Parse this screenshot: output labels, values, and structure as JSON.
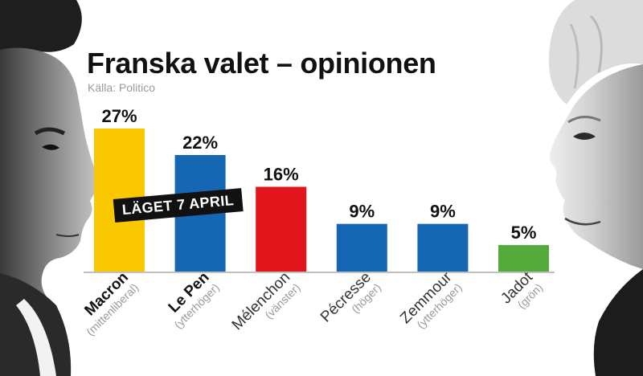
{
  "header": {
    "title": "Franska valet – opinionen",
    "source": "Källa: Politico"
  },
  "tag": {
    "text": "LÄGET 7 APRIL"
  },
  "chart_data": {
    "type": "bar",
    "title": "Franska valet – opinionen",
    "subtitle": "Källa: Politico",
    "categories": [
      "Macron",
      "Le Pen",
      "Mélenchon",
      "Pécresse",
      "Zemmour",
      "Jadot"
    ],
    "category_notes": [
      "(mittenliberal)",
      "(ytterhöger)",
      "(vänster)",
      "(höger)",
      "(ytterhöger)",
      "(grön)"
    ],
    "values": [
      27,
      22,
      16,
      9,
      9,
      5
    ],
    "value_labels": [
      "27%",
      "22%",
      "16%",
      "9%",
      "9%",
      "5%"
    ],
    "colors": [
      "#f9c800",
      "#1667b3",
      "#e3151c",
      "#1667b3",
      "#1667b3",
      "#55aa3c"
    ],
    "bold_names": [
      true,
      true,
      false,
      false,
      false,
      false
    ],
    "ylim": [
      0,
      27
    ],
    "grid": false,
    "legend": "none",
    "annotations": [
      "LÄGET 7 APRIL"
    ]
  },
  "colors": {
    "text": "#111111",
    "muted": "#9a9a9a",
    "baseline": "#9a9a9a"
  },
  "icons": {
    "left_portrait": "politician-portrait-left",
    "right_portrait": "politician-portrait-right"
  }
}
